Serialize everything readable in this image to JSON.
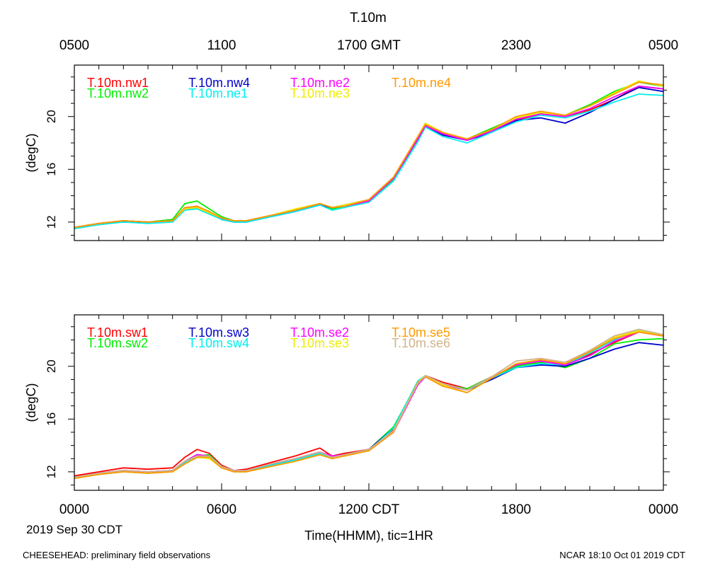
{
  "title": "T.10m",
  "top_time_labels": [
    "0500",
    "1100",
    "1700 GMT",
    "2300",
    "0500"
  ],
  "bottom_time_labels": [
    "0000",
    "0600",
    "1200 CDT",
    "1800",
    "0000"
  ],
  "date_label": "2019 Sep 30 CDT",
  "xlabel": "Time(HHMM), tic=1HR",
  "footer_left": "CHEESEHEAD: preliminary field observations",
  "footer_right": "NCAR 18:10 Oct 01 2019 CDT",
  "chart_data": [
    {
      "type": "line",
      "title": "T.10m",
      "ylabel": "(degC)",
      "xlabel": "Time(HHMM), tic=1HR",
      "x": [
        0,
        1,
        2,
        3,
        4,
        4.5,
        5,
        5.5,
        6,
        6.5,
        7,
        8,
        9,
        10,
        10.5,
        11,
        12,
        13,
        14,
        14.3,
        15,
        16,
        17,
        18,
        19,
        20,
        21,
        22,
        23,
        24
      ],
      "xlim": [
        0,
        24
      ],
      "ylim": [
        10.6,
        23.9
      ],
      "yticks": [
        12,
        16,
        20
      ],
      "ytick_labels": [
        "12",
        "16",
        "20"
      ],
      "legend": "top-left",
      "series": [
        {
          "name": "T.10m.nw1",
          "color": "#ff0000",
          "values": [
            11.6,
            11.9,
            12.1,
            12.0,
            12.1,
            13.0,
            13.2,
            12.7,
            12.3,
            12.1,
            12.1,
            12.5,
            12.9,
            13.4,
            13.1,
            13.2,
            13.6,
            15.3,
            18.3,
            19.4,
            18.7,
            18.2,
            18.8,
            19.7,
            20.2,
            20.0,
            20.5,
            21.3,
            22.3,
            22.1
          ]
        },
        {
          "name": "T.10m.nw2",
          "color": "#00ee00",
          "values": [
            11.6,
            11.9,
            12.1,
            12.0,
            12.2,
            13.4,
            13.6,
            13.0,
            12.4,
            12.1,
            12.0,
            12.5,
            12.9,
            13.4,
            13.0,
            13.2,
            13.6,
            15.2,
            18.2,
            19.3,
            18.6,
            18.3,
            19.1,
            19.9,
            20.3,
            20.1,
            20.9,
            21.9,
            22.6,
            22.3
          ]
        },
        {
          "name": "T.10m.nw4",
          "color": "#0000cc",
          "values": [
            11.6,
            11.9,
            12.0,
            12.0,
            12.1,
            13.0,
            13.1,
            12.7,
            12.2,
            12.0,
            12.0,
            12.4,
            12.8,
            13.3,
            13.1,
            13.3,
            13.7,
            15.4,
            18.4,
            19.2,
            18.6,
            18.2,
            18.8,
            19.7,
            19.9,
            19.5,
            20.3,
            21.3,
            22.2,
            21.9
          ]
        },
        {
          "name": "T.10m.ne1",
          "color": "#00eeee",
          "values": [
            11.5,
            11.8,
            12.0,
            11.9,
            12.0,
            12.9,
            13.0,
            12.6,
            12.2,
            12.0,
            12.0,
            12.4,
            12.8,
            13.3,
            12.9,
            13.1,
            13.5,
            15.1,
            18.1,
            19.2,
            18.5,
            18.0,
            18.8,
            19.6,
            20.1,
            19.9,
            20.4,
            21.1,
            21.7,
            21.6
          ]
        },
        {
          "name": "T.10m.ne2",
          "color": "#ff00ff",
          "values": [
            11.6,
            11.9,
            12.1,
            12.0,
            12.1,
            13.0,
            13.2,
            12.7,
            12.3,
            12.1,
            12.1,
            12.5,
            12.9,
            13.4,
            13.1,
            13.2,
            13.6,
            15.3,
            18.3,
            19.3,
            18.7,
            18.2,
            18.9,
            19.8,
            20.2,
            20.0,
            20.6,
            21.5,
            22.3,
            22.1
          ]
        },
        {
          "name": "T.10m.ne3",
          "color": "#eeee00",
          "values": [
            11.6,
            11.9,
            12.1,
            12.0,
            12.1,
            13.0,
            13.1,
            12.7,
            12.3,
            12.1,
            12.1,
            12.5,
            13.0,
            13.4,
            13.1,
            13.3,
            13.7,
            15.4,
            18.5,
            19.5,
            18.8,
            18.3,
            19.0,
            19.9,
            20.3,
            20.1,
            20.8,
            21.8,
            22.7,
            22.3
          ]
        },
        {
          "name": "T.10m.ne4",
          "color": "#ff9900",
          "values": [
            11.6,
            11.9,
            12.1,
            12.0,
            12.1,
            13.1,
            13.2,
            12.8,
            12.3,
            12.1,
            12.1,
            12.5,
            12.9,
            13.4,
            13.1,
            13.2,
            13.7,
            15.4,
            18.5,
            19.4,
            18.8,
            18.3,
            19.0,
            20.0,
            20.4,
            20.1,
            20.8,
            21.7,
            22.6,
            22.4
          ]
        }
      ]
    },
    {
      "type": "line",
      "title": "",
      "ylabel": "(degC)",
      "xlabel": "Time(HHMM), tic=1HR",
      "x": [
        0,
        1,
        2,
        3,
        4,
        4.5,
        5,
        5.5,
        6,
        6.5,
        7,
        8,
        9,
        10,
        10.5,
        11,
        12,
        13,
        14,
        14.3,
        15,
        16,
        17,
        18,
        19,
        20,
        21,
        22,
        23,
        24
      ],
      "xlim": [
        0,
        24
      ],
      "ylim": [
        10.6,
        23.9
      ],
      "yticks": [
        12,
        16,
        20
      ],
      "ytick_labels": [
        "12",
        "16",
        "20"
      ],
      "legend": "top-left",
      "series": [
        {
          "name": "T.10m.sw1",
          "color": "#ff0000",
          "values": [
            11.7,
            12.0,
            12.3,
            12.2,
            12.3,
            13.1,
            13.7,
            13.4,
            12.5,
            12.1,
            12.2,
            12.7,
            13.2,
            13.8,
            13.2,
            13.4,
            13.7,
            15.2,
            18.6,
            19.3,
            18.8,
            18.3,
            19.2,
            20.0,
            20.4,
            20.1,
            20.9,
            21.8,
            22.6,
            22.3
          ]
        },
        {
          "name": "T.10m.sw2",
          "color": "#00ee00",
          "values": [
            11.6,
            11.9,
            12.1,
            12.0,
            12.1,
            12.7,
            13.2,
            13.3,
            12.4,
            12.1,
            12.0,
            12.5,
            12.9,
            13.4,
            13.1,
            13.3,
            13.7,
            15.4,
            18.8,
            19.2,
            18.6,
            18.3,
            19.2,
            20.0,
            20.3,
            19.9,
            20.6,
            21.7,
            22.0,
            22.1
          ]
        },
        {
          "name": "T.10m.sw3",
          "color": "#0000cc",
          "values": [
            11.6,
            11.9,
            12.1,
            12.0,
            12.1,
            12.8,
            13.3,
            13.2,
            12.4,
            12.1,
            12.1,
            12.5,
            13.0,
            13.5,
            13.1,
            13.3,
            13.7,
            15.3,
            18.7,
            19.2,
            18.6,
            18.2,
            19.0,
            19.9,
            20.1,
            20.0,
            20.6,
            21.3,
            21.8,
            21.6
          ]
        },
        {
          "name": "T.10m.sw4",
          "color": "#00eeee",
          "values": [
            11.5,
            11.8,
            12.0,
            11.9,
            12.0,
            12.7,
            13.1,
            13.2,
            12.3,
            12.0,
            12.0,
            12.5,
            12.9,
            13.4,
            13.1,
            13.2,
            13.6,
            15.3,
            18.9,
            19.3,
            18.6,
            18.2,
            19.1,
            19.9,
            20.2,
            20.1,
            21.0,
            22.0,
            22.8,
            22.3
          ]
        },
        {
          "name": "T.10m.se2",
          "color": "#ff00ff",
          "values": [
            11.6,
            11.9,
            12.1,
            12.0,
            12.1,
            12.8,
            13.3,
            13.2,
            12.4,
            12.1,
            12.1,
            12.6,
            13.0,
            13.5,
            13.2,
            13.3,
            13.6,
            15.0,
            18.6,
            19.2,
            18.6,
            18.2,
            19.2,
            20.1,
            20.4,
            20.1,
            20.8,
            21.9,
            22.6,
            22.3
          ]
        },
        {
          "name": "T.10m.se3",
          "color": "#eeee00",
          "values": [
            11.5,
            11.8,
            12.0,
            11.9,
            12.0,
            12.6,
            13.1,
            13.0,
            12.3,
            12.0,
            12.0,
            12.4,
            12.8,
            13.3,
            13.0,
            13.2,
            13.6,
            15.1,
            18.8,
            19.3,
            18.6,
            18.0,
            19.1,
            20.2,
            20.5,
            20.2,
            21.1,
            22.2,
            22.7,
            22.3
          ]
        },
        {
          "name": "T.10m.se5",
          "color": "#ff9900",
          "values": [
            11.5,
            11.8,
            12.0,
            11.9,
            12.0,
            12.6,
            13.1,
            13.1,
            12.3,
            12.0,
            12.0,
            12.4,
            12.8,
            13.3,
            13.0,
            13.2,
            13.6,
            15.0,
            18.8,
            19.2,
            18.5,
            18.0,
            19.1,
            20.2,
            20.5,
            20.2,
            21.1,
            22.1,
            22.6,
            22.3
          ]
        },
        {
          "name": "T.10m.se6",
          "color": "#d2b48c",
          "values": [
            11.6,
            11.9,
            12.1,
            12.0,
            12.1,
            12.8,
            13.2,
            13.2,
            12.4,
            12.1,
            12.1,
            12.6,
            13.0,
            13.5,
            13.1,
            13.3,
            13.7,
            15.1,
            18.7,
            19.3,
            18.7,
            18.2,
            19.2,
            20.4,
            20.6,
            20.3,
            21.2,
            22.3,
            22.8,
            22.4
          ]
        }
      ]
    }
  ]
}
